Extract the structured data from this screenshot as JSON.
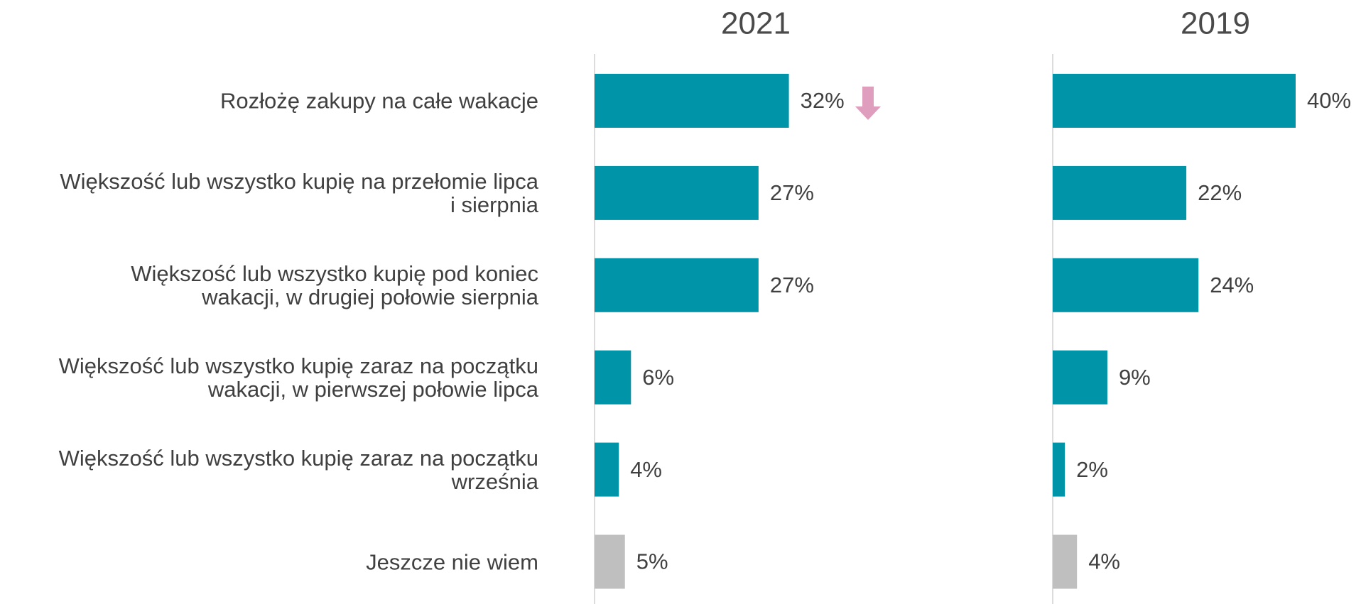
{
  "chart_data": {
    "type": "bar",
    "categories": [
      "Rozłożę zakupy na całe wakacje",
      "Większość lub wszystko kupię na przełomie lipca\ni sierpnia",
      "Większość lub wszystko kupię pod koniec\nwakacji, w drugiej połowie sierpnia",
      "Większość lub wszystko kupię zaraz na początku\nwakacji, w pierwszej połowie lipca",
      "Większość lub wszystko kupię zaraz na początku\nwrześnia",
      "Jeszcze nie wiem"
    ],
    "series": [
      {
        "name": "2021",
        "colors": [
          "#0094a8",
          "#0094a8",
          "#0094a8",
          "#0094a8",
          "#0094a8",
          "#bfbfbf"
        ],
        "values": [
          32,
          27,
          27,
          6,
          4,
          5
        ],
        "value_labels": [
          "32%",
          "27%",
          "27%",
          "6%",
          "4%",
          "5%"
        ]
      },
      {
        "name": "2019",
        "colors": [
          "#0094a8",
          "#0094a8",
          "#0094a8",
          "#0094a8",
          "#0094a8",
          "#bfbfbf"
        ],
        "values": [
          40,
          22,
          24,
          9,
          2,
          4
        ],
        "value_labels": [
          "40%",
          "22%",
          "24%",
          "9%",
          "2%",
          "4%"
        ]
      }
    ]
  }
}
